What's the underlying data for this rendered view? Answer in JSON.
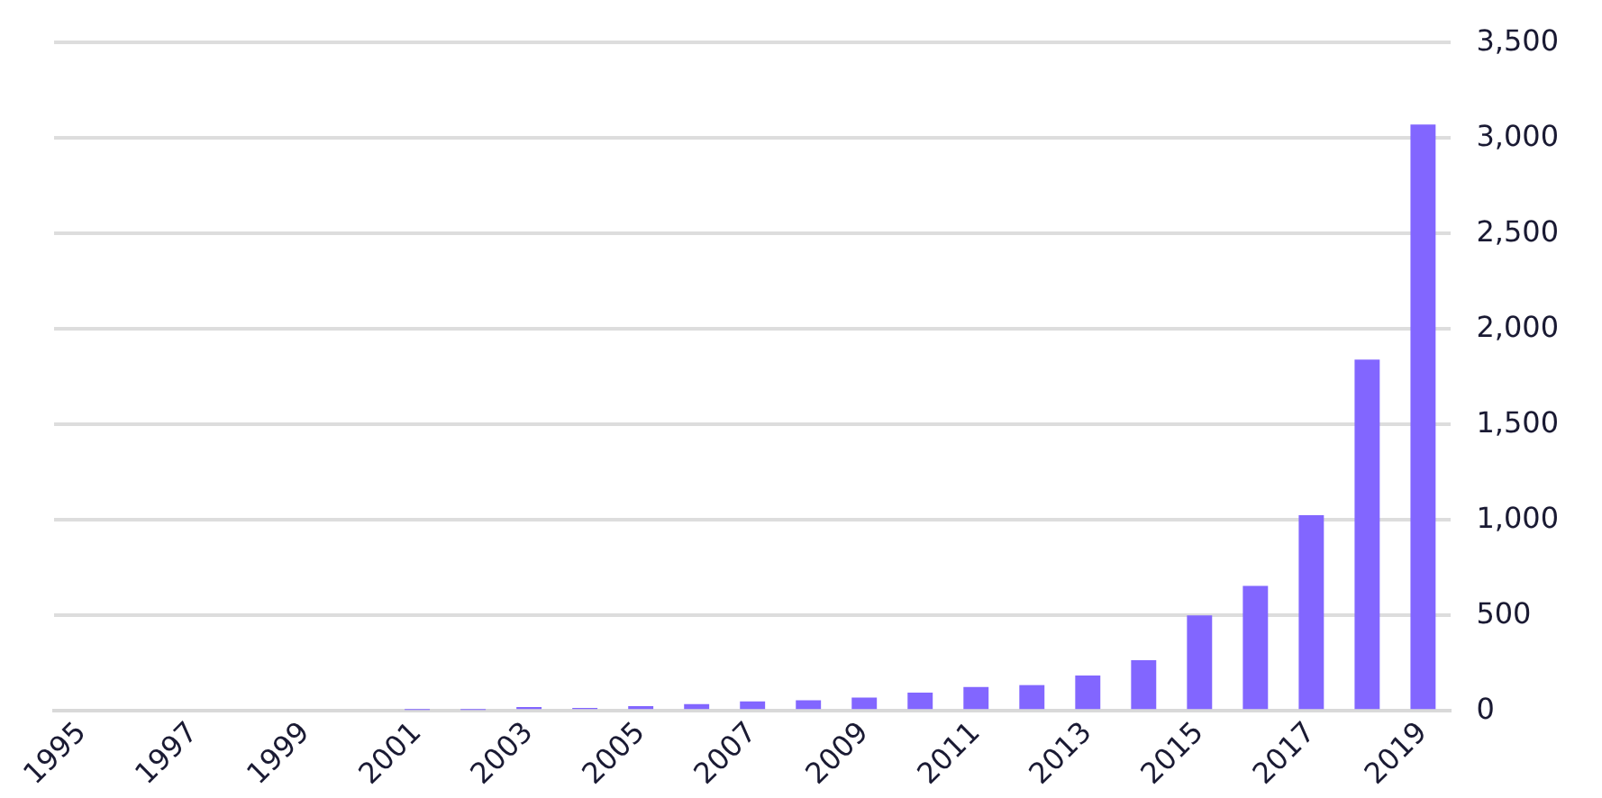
{
  "chart_data": {
    "type": "bar",
    "categories": [
      "1995",
      null,
      "1997",
      null,
      "1999",
      null,
      "2001",
      null,
      "2003",
      null,
      "2005",
      null,
      "2007",
      null,
      "2009",
      null,
      "2011",
      null,
      "2013",
      null,
      "2015",
      null,
      "2017",
      null,
      "2019"
    ],
    "values": [
      0,
      0,
      0,
      0,
      0,
      0,
      5,
      5,
      20,
      15,
      25,
      35,
      50,
      55,
      70,
      95,
      125,
      135,
      185,
      265,
      500,
      655,
      1025,
      1840,
      3070
    ],
    "color": "#8266ff",
    "ylim": [
      0,
      3500
    ],
    "yticks": [
      0,
      {
        "value": 500,
        "label": "500"
      },
      {
        "value": 1000,
        "label": "1,000"
      },
      {
        "value": 1500,
        "label": "1,500"
      },
      {
        "value": 2000,
        "label": "2,000"
      },
      {
        "value": 2500,
        "label": "2,500"
      },
      {
        "value": 3000,
        "label": "3,000"
      },
      {
        "value": 3500,
        "label": "3,500"
      }
    ],
    "grid": "y",
    "legend": false
  }
}
